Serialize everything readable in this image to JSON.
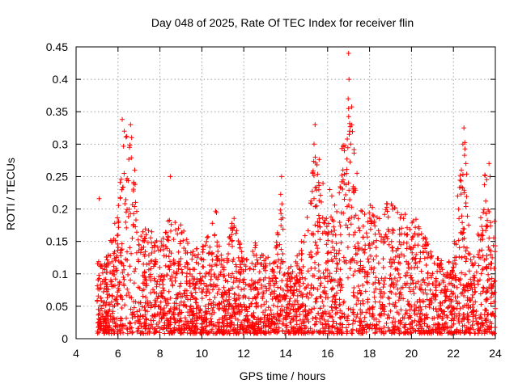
{
  "chart_data": {
    "type": "scatter",
    "title": "Day 048 of 2025, Rate Of TEC Index for receiver flin",
    "xlabel": "GPS time / hours",
    "ylabel": "ROTI / TECUs",
    "xlim": [
      4,
      24
    ],
    "ylim": [
      0,
      0.45
    ],
    "xticks": [
      4,
      6,
      8,
      10,
      12,
      14,
      16,
      18,
      20,
      22,
      24
    ],
    "yticks": [
      0,
      0.05,
      0.1,
      0.15,
      0.2,
      0.25,
      0.3,
      0.35,
      0.4,
      0.45
    ],
    "xtick_labels": [
      "4",
      "6",
      "8",
      "10",
      "12",
      "14",
      "16",
      "18",
      "20",
      "22",
      "24"
    ],
    "ytick_labels": [
      "0",
      "0.05",
      "0.1",
      "0.15",
      "0.2",
      "0.25",
      "0.3",
      "0.35",
      "0.4",
      "0.45"
    ],
    "grid": true,
    "marker": "+",
    "color": "#ff0000",
    "series": [
      {
        "x_start": 5.0,
        "x_end": 24.0,
        "envelope": [
          [
            5.0,
            0.12
          ],
          [
            5.5,
            0.13
          ],
          [
            6.0,
            0.2
          ],
          [
            6.3,
            0.33
          ],
          [
            6.6,
            0.32
          ],
          [
            7.0,
            0.18
          ],
          [
            7.5,
            0.17
          ],
          [
            8.0,
            0.15
          ],
          [
            8.5,
            0.19
          ],
          [
            9.0,
            0.18
          ],
          [
            9.5,
            0.14
          ],
          [
            10.0,
            0.14
          ],
          [
            10.7,
            0.2
          ],
          [
            11.0,
            0.12
          ],
          [
            11.5,
            0.19
          ],
          [
            12.0,
            0.13
          ],
          [
            12.5,
            0.15
          ],
          [
            13.0,
            0.13
          ],
          [
            13.5,
            0.13
          ],
          [
            13.8,
            0.24
          ],
          [
            14.0,
            0.1
          ],
          [
            14.5,
            0.13
          ],
          [
            15.0,
            0.18
          ],
          [
            15.5,
            0.32
          ],
          [
            16.0,
            0.18
          ],
          [
            16.5,
            0.22
          ],
          [
            17.0,
            0.44
          ],
          [
            17.5,
            0.2
          ],
          [
            18.0,
            0.21
          ],
          [
            18.5,
            0.2
          ],
          [
            19.0,
            0.22
          ],
          [
            19.5,
            0.2
          ],
          [
            20.0,
            0.2
          ],
          [
            20.5,
            0.17
          ],
          [
            21.0,
            0.13
          ],
          [
            21.5,
            0.12
          ],
          [
            22.0,
            0.13
          ],
          [
            22.5,
            0.32
          ],
          [
            23.0,
            0.12
          ],
          [
            23.5,
            0.26
          ],
          [
            24.0,
            0.18
          ]
        ],
        "spikes": [
          [
            6.2,
            0.338
          ],
          [
            6.3,
            0.32
          ],
          [
            6.6,
            0.33
          ],
          [
            6.65,
            0.31
          ],
          [
            6.8,
            0.26
          ],
          [
            8.5,
            0.25
          ],
          [
            15.4,
            0.33
          ],
          [
            15.35,
            0.3
          ],
          [
            16.1,
            0.23
          ],
          [
            16.2,
            0.22
          ],
          [
            17.0,
            0.44
          ],
          [
            17.02,
            0.4
          ],
          [
            16.98,
            0.37
          ],
          [
            17.0,
            0.355
          ],
          [
            17.05,
            0.32
          ],
          [
            17.1,
            0.3
          ],
          [
            13.8,
            0.25
          ],
          [
            22.5,
            0.325
          ],
          [
            22.45,
            0.3
          ],
          [
            22.6,
            0.27
          ],
          [
            23.7,
            0.27
          ],
          [
            23.75,
            0.25
          ],
          [
            5.1,
            0.216
          ],
          [
            17.4,
            0.255
          ],
          [
            22.2,
            0.22
          ],
          [
            16.8,
            0.29
          ]
        ]
      }
    ]
  }
}
